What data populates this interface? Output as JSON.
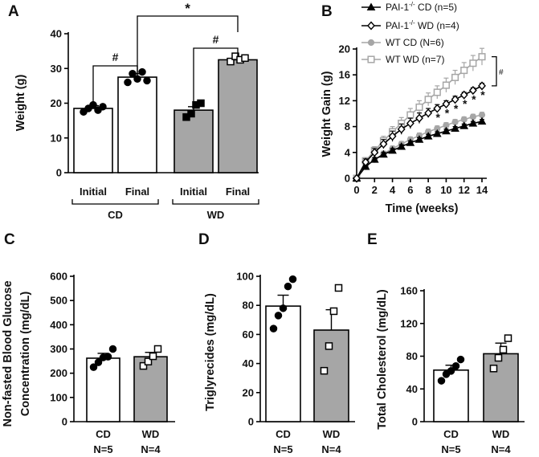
{
  "chart_data": [
    {
      "panel": "A",
      "type": "bar",
      "ylabel": "Weight (g)",
      "ylim": [
        0,
        40
      ],
      "yticks": [
        "0",
        "10",
        "20",
        "30",
        "40"
      ],
      "categories": [
        "Initial",
        "Final",
        "Initial",
        "Final"
      ],
      "groups": [
        "CD",
        "WD"
      ],
      "values": [
        18.5,
        27.5,
        18,
        32.5
      ],
      "sem": [
        0.8,
        1.0,
        1.0,
        0.6
      ],
      "fills": [
        "white",
        "white",
        "grey",
        "grey"
      ],
      "points": [
        [
          17.5,
          18.5,
          19.5,
          18,
          19
        ],
        [
          26,
          28.5,
          27,
          29,
          26.5
        ],
        [
          16,
          17,
          19.5,
          20
        ],
        [
          32,
          33.5,
          32.5,
          33
        ]
      ],
      "annotations": [
        "#",
        "#",
        "*"
      ]
    },
    {
      "panel": "B",
      "type": "line",
      "xlabel": "Time (weeks)",
      "ylabel": "Weight Gain (g)",
      "xlim": [
        0,
        14
      ],
      "ylim": [
        0,
        20
      ],
      "xticks": [
        "0",
        "2",
        "4",
        "6",
        "8",
        "10",
        "12",
        "14"
      ],
      "yticks": [
        "0",
        "4",
        "8",
        "12",
        "16",
        "20"
      ],
      "x": [
        0,
        1,
        2,
        3,
        4,
        5,
        6,
        7,
        8,
        9,
        10,
        11,
        12,
        13,
        14
      ],
      "series": [
        {
          "name": "CD (n=5)",
          "name_prefix": "PAI-1",
          "superscript": "-/-",
          "marker": "filled-triangle",
          "color": "#000000",
          "values": [
            0,
            1.8,
            2.9,
            3.7,
            4.3,
            4.9,
            5.5,
            6.0,
            6.5,
            6.9,
            7.3,
            7.7,
            8.1,
            8.5,
            8.8
          ],
          "sem": [
            0,
            0.3,
            0.3,
            0.3,
            0.3,
            0.3,
            0.3,
            0.3,
            0.3,
            0.3,
            0.3,
            0.3,
            0.3,
            0.3,
            0.3
          ]
        },
        {
          "name": "WD (n=4)",
          "name_prefix": "PAI-1",
          "superscript": "-/-",
          "marker": "open-diamond",
          "color": "#000000",
          "values": [
            0,
            2.5,
            4.0,
            5.3,
            6.5,
            7.6,
            8.5,
            9.3,
            10.1,
            10.8,
            11.5,
            12.2,
            12.9,
            13.6,
            14.3
          ],
          "sem": [
            0,
            0.5,
            0.6,
            0.7,
            0.8,
            0.8,
            0.8,
            0.8,
            0.7,
            0.6,
            0.5,
            0.5,
            0.4,
            0.4,
            0.4
          ]
        },
        {
          "name": "WT CD (N=6)",
          "name_prefix": "",
          "superscript": "",
          "marker": "filled-circle",
          "color": "#a6a6a6",
          "values": [
            0,
            1.8,
            2.9,
            3.8,
            4.6,
            5.3,
            6.0,
            6.6,
            7.2,
            7.7,
            8.2,
            8.7,
            9.1,
            9.5,
            9.8
          ],
          "sem": [
            0,
            0.3,
            0.3,
            0.4,
            0.4,
            0.4,
            0.4,
            0.4,
            0.4,
            0.4,
            0.4,
            0.4,
            0.4,
            0.4,
            0.4
          ]
        },
        {
          "name": "WT WD (n=7)",
          "name_prefix": "",
          "superscript": "",
          "marker": "open-square",
          "color": "#a6a6a6",
          "values": [
            0,
            2.7,
            4.3,
            5.8,
            7.2,
            8.5,
            9.8,
            11.0,
            12.2,
            13.3,
            14.4,
            15.6,
            16.7,
            17.8,
            18.8
          ],
          "sem": [
            0,
            0.5,
            0.6,
            0.7,
            0.8,
            0.9,
            1.0,
            1.0,
            1.0,
            1.0,
            1.1,
            1.1,
            1.2,
            1.2,
            1.3
          ]
        }
      ],
      "star_weeks": [
        9,
        10,
        11,
        12,
        13,
        14
      ],
      "star_label": "*",
      "bracket_label": "#"
    },
    {
      "panel": "C",
      "type": "bar",
      "ylabel_lines": [
        "Non-fasted Blood Glucose",
        "Concentration (mg/dL)"
      ],
      "ylim": [
        0,
        600
      ],
      "yticks": [
        "0",
        "100",
        "200",
        "300",
        "400",
        "500",
        "600"
      ],
      "categories": [
        "CD",
        "WD"
      ],
      "n_labels": [
        "N=5",
        "N=4"
      ],
      "values": [
        262,
        268
      ],
      "sem": [
        20,
        18
      ],
      "fills": [
        "white",
        "grey"
      ],
      "points": [
        [
          225,
          245,
          265,
          268,
          300
        ],
        [
          230,
          248,
          270,
          300
        ]
      ]
    },
    {
      "panel": "D",
      "type": "bar",
      "ylabel": "Triglyrecides (mg/dL)",
      "ylim": [
        0,
        100
      ],
      "yticks": [
        "0",
        "20",
        "40",
        "60",
        "80",
        "100"
      ],
      "categories": [
        "CD",
        "WD"
      ],
      "n_labels": [
        "N=5",
        "N=4"
      ],
      "values": [
        79.5,
        63
      ],
      "sem": [
        7.5,
        14
      ],
      "fills": [
        "white",
        "grey"
      ],
      "points": [
        [
          64,
          73,
          78,
          93,
          98
        ],
        [
          35,
          52,
          76,
          92
        ]
      ]
    },
    {
      "panel": "E",
      "type": "bar",
      "ylabel": "Total Cholesterol (mg/dL)",
      "ylim": [
        0,
        160
      ],
      "yticks": [
        "0",
        "40",
        "80",
        "120",
        "160"
      ],
      "categories": [
        "CD",
        "WD"
      ],
      "n_labels": [
        "N=5",
        "N=4"
      ],
      "values": [
        63,
        83
      ],
      "sem": [
        6,
        13
      ],
      "fills": [
        "white",
        "grey"
      ],
      "points": [
        [
          50,
          58,
          62,
          68,
          76
        ],
        [
          65,
          78,
          88,
          102
        ]
      ]
    }
  ]
}
